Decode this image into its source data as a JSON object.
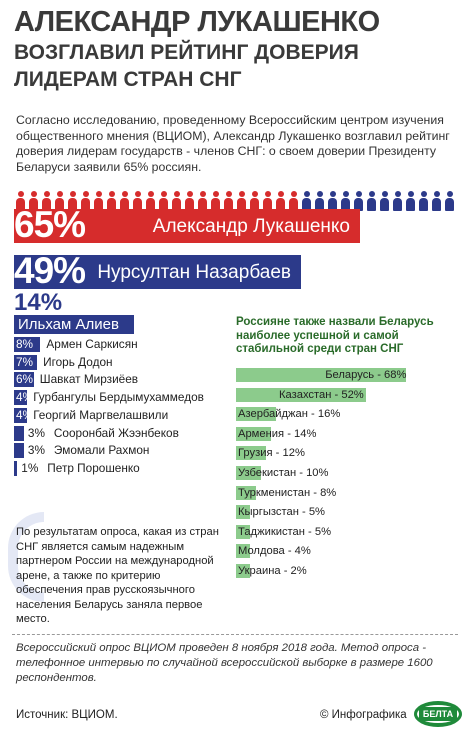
{
  "title": {
    "line1": "АЛЕКСАНДР ЛУКАШЕНКО",
    "line2": "ВОЗГЛАВИЛ РЕЙТИНГ ДОВЕРИЯ",
    "line3": "ЛИДЕРАМ СТРАН СНГ"
  },
  "intro": "Согласно исследованию, проведенному Всероссийским центром изучения общественного мнения (ВЦИОМ), Александр Лукашенко возглавил рейтинг доверия лидерам государств - членов СНГ: о своем доверии Президенту Беларуси заявили 65% россиян.",
  "colors": {
    "red": "#d62c2c",
    "blue": "#2c3a8a",
    "green_bar": "#8ccb8c",
    "green_title": "#2a6b2a"
  },
  "chart_data": [
    {
      "type": "bar",
      "orientation": "horizontal",
      "title": "",
      "categories": [
        "Александр Лукашенко",
        "Нурсултан Назарбаев",
        "Ильхам Алиев",
        "Армен Саркисян",
        "Игорь Додон",
        "Шавкат Мирзиёев",
        "Гурбангулы Бердымухаммедов",
        "Георгий Маргвелашвили",
        "Сооронбай Жээнбеков",
        "Эмомали Рахмон",
        "Петр Порошенко"
      ],
      "values": [
        65,
        49,
        14,
        8,
        7,
        6,
        4,
        4,
        3,
        3,
        1
      ],
      "labels": [
        "65%",
        "49%",
        "14%",
        "8%",
        "7%",
        "6%",
        "4%",
        "4%",
        "3%",
        "3%",
        "1%"
      ],
      "unit": "%"
    },
    {
      "type": "bar",
      "orientation": "horizontal",
      "title": "Россияне также назвали Беларусь наиболее успешной и самой стабильной среди стран СНГ",
      "categories": [
        "Беларусь",
        "Казахстан",
        "Азербайджан",
        "Армения",
        "Грузия",
        "Узбекистан",
        "Туркменистан",
        "Кыргызстан",
        "Таджикистан",
        "Молдова",
        "Украина"
      ],
      "values": [
        68,
        52,
        16,
        14,
        12,
        10,
        8,
        5,
        5,
        4,
        2
      ],
      "labels": [
        "Беларусь - 68%",
        "Казахстан - 52%",
        "Азербайджан - 16%",
        "Армения - 14%",
        "Грузия - 12%",
        "Узбекистан - 10%",
        "Туркменистан - 8%",
        "Кыргызстан - 5%",
        "Таджикистан - 5%",
        "Молдова - 4%",
        "Украина - 2%"
      ],
      "unit": "%"
    }
  ],
  "note": "По результатам опроса, какая из стран СНГ является самым надежным партнером России на международной арене, а также по критерию обеспечения прав русскоязычного населения Беларусь заняла первое место.",
  "survey": "Всероссийский опрос ВЦИОМ проведен 8 ноября 2018 года. Метод опроса - телефонное интервью по случайной всероссийской выборке в размере 1600 респондентов.",
  "footer": {
    "source": "Источник: ВЦИОМ.",
    "copy": "© Инфографика",
    "logo": "БЕЛТА"
  }
}
